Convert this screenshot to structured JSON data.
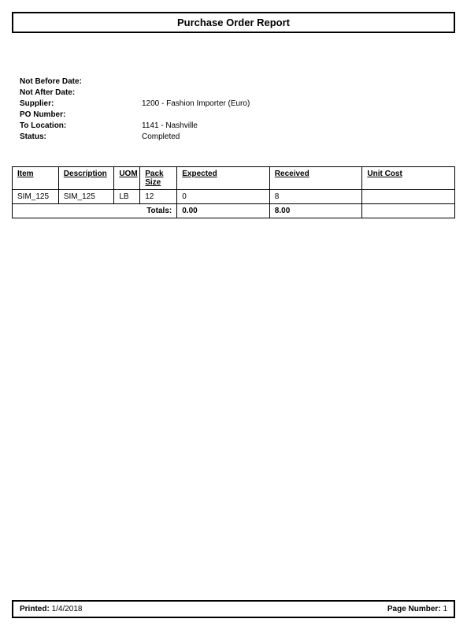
{
  "title": "Purchase Order Report",
  "meta": {
    "not_before_label": "Not Before Date:",
    "not_before_value": "",
    "not_after_label": "Not After Date:",
    "not_after_value": "",
    "supplier_label": "Supplier:",
    "supplier_value": "1200 - Fashion Importer (Euro)",
    "po_number_label": "PO Number:",
    "po_number_value": "",
    "to_location_label": "To Location:",
    "to_location_value": "1141 - Nashville",
    "status_label": "Status:",
    "status_value": "Completed"
  },
  "table": {
    "headers": {
      "item": "Item",
      "description": "Description",
      "uom": "UOM",
      "pack_size": "Pack Size",
      "expected": "Expected",
      "received": "Received",
      "unit_cost": "Unit Cost"
    },
    "rows": [
      {
        "item": "SIM_125",
        "description": "SIM_125",
        "uom": "LB",
        "pack_size": "12",
        "expected": "0",
        "received": "8",
        "unit_cost": ""
      }
    ],
    "totals": {
      "label": "Totals:",
      "expected": "0.00",
      "received": "8.00",
      "unit_cost": ""
    },
    "column_widths": {
      "item": 50,
      "description": 60,
      "uom": 28,
      "pack_size": 40,
      "expected": 100,
      "received": 100,
      "unit_cost": 100
    }
  },
  "footer": {
    "printed_label": "Printed:",
    "printed_value": "1/4/2018",
    "page_label": "Page Number:",
    "page_value": "1"
  },
  "style": {
    "background_color": "#ffffff",
    "border_color": "#000000",
    "font_family": "Arial",
    "title_fontsize": 13,
    "body_fontsize": 10
  }
}
